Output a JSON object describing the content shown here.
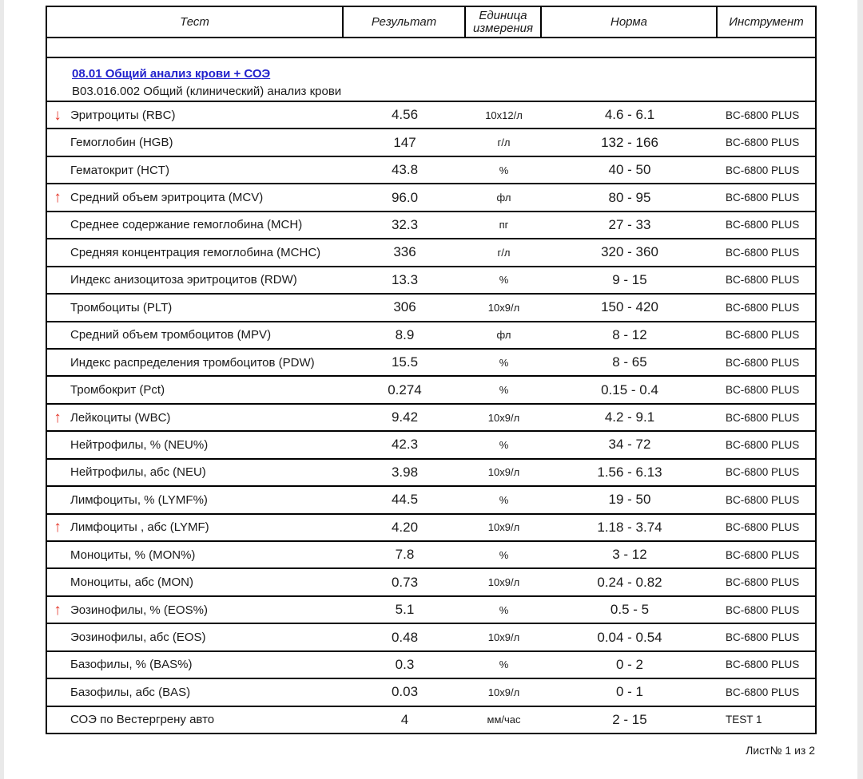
{
  "page": {
    "footer": "Лист№ 1 из 2"
  },
  "colors": {
    "flag_red": "#e53528",
    "link_blue": "#2222cc",
    "border_black": "#000000",
    "edge_gray": "#e9e9e9"
  },
  "icons": {
    "up": "↑",
    "down": "↓",
    "up_name": "arrow-up-icon",
    "down_name": "arrow-down-icon"
  },
  "table": {
    "headers": {
      "test": "Тест",
      "result": "Результат",
      "unit": "Единица измерения",
      "norm": "Норма",
      "instrument": "Инструмент"
    },
    "section": {
      "code_title": "08.01 Общий анализ крови + СОЭ",
      "subtitle": "В03.016.002 Общий (клинический) анализ крови"
    },
    "rows": [
      {
        "flag": "down",
        "test": "Эритроциты (RBC)",
        "result": "4.56",
        "unit": "10x12/л",
        "norm": "4.6 - 6.1",
        "instrument": "BC-6800 PLUS"
      },
      {
        "flag": "",
        "test": "Гемоглобин (HGB)",
        "result": "147",
        "unit": "г/л",
        "norm": "132 - 166",
        "instrument": "BC-6800 PLUS"
      },
      {
        "flag": "",
        "test": "Гематокрит (HCT)",
        "result": "43.8",
        "unit": "%",
        "norm": "40 - 50",
        "instrument": "BC-6800 PLUS"
      },
      {
        "flag": "up",
        "test": "Средний объем эритроцита (MCV)",
        "result": "96.0",
        "unit": "фл",
        "norm": "80 - 95",
        "instrument": "BC-6800 PLUS"
      },
      {
        "flag": "",
        "test": "Среднее содержание гемоглобина (MCH)",
        "result": "32.3",
        "unit": "пг",
        "norm": "27 - 33",
        "instrument": "BC-6800 PLUS"
      },
      {
        "flag": "",
        "test": "Средняя концентрация гемоглобина (MCHC)",
        "result": "336",
        "unit": "г/л",
        "norm": "320 - 360",
        "instrument": "BC-6800 PLUS"
      },
      {
        "flag": "",
        "test": "Индекс анизоцитоза эритроцитов (RDW)",
        "result": "13.3",
        "unit": "%",
        "norm": "9 - 15",
        "instrument": "BC-6800 PLUS"
      },
      {
        "flag": "",
        "test": "Тромбоциты (PLT)",
        "result": "306",
        "unit": "10x9/л",
        "norm": "150 - 420",
        "instrument": "BC-6800 PLUS"
      },
      {
        "flag": "",
        "test": "Средний объем тромбоцитов (MPV)",
        "result": "8.9",
        "unit": "фл",
        "norm": "8 - 12",
        "instrument": "BC-6800 PLUS"
      },
      {
        "flag": "",
        "test": "Индекс распределения тромбоцитов (PDW)",
        "result": "15.5",
        "unit": "%",
        "norm": "8 - 65",
        "instrument": "BC-6800 PLUS"
      },
      {
        "flag": "",
        "test": "Тромбокрит (Pct)",
        "result": "0.274",
        "unit": "%",
        "norm": "0.15 - 0.4",
        "instrument": "BC-6800 PLUS"
      },
      {
        "flag": "up",
        "test": "Лейкоциты (WBC)",
        "result": "9.42",
        "unit": "10x9/л",
        "norm": "4.2 - 9.1",
        "instrument": "BC-6800 PLUS"
      },
      {
        "flag": "",
        "test": "Нейтрофилы, % (NEU%)",
        "result": "42.3",
        "unit": "%",
        "norm": "34 - 72",
        "instrument": "BC-6800 PLUS"
      },
      {
        "flag": "",
        "test": "Нейтрофилы, абс (NEU)",
        "result": "3.98",
        "unit": "10x9/л",
        "norm": "1.56 - 6.13",
        "instrument": "BC-6800 PLUS"
      },
      {
        "flag": "",
        "test": "Лимфоциты, % (LYMF%)",
        "result": "44.5",
        "unit": "%",
        "norm": "19 - 50",
        "instrument": "BC-6800 PLUS"
      },
      {
        "flag": "up",
        "test": "Лимфоциты , абс (LYMF)",
        "result": "4.20",
        "unit": "10x9/л",
        "norm": "1.18 - 3.74",
        "instrument": "BC-6800 PLUS"
      },
      {
        "flag": "",
        "test": "Моноциты, % (MON%)",
        "result": "7.8",
        "unit": "%",
        "norm": "3 - 12",
        "instrument": "BC-6800 PLUS"
      },
      {
        "flag": "",
        "test": "Моноциты, абс (MON)",
        "result": "0.73",
        "unit": "10x9/л",
        "norm": "0.24 - 0.82",
        "instrument": "BC-6800 PLUS"
      },
      {
        "flag": "up",
        "test": "Эозинофилы, % (EOS%)",
        "result": "5.1",
        "unit": "%",
        "norm": "0.5 - 5",
        "instrument": "BC-6800 PLUS"
      },
      {
        "flag": "",
        "test": "Эозинофилы, абс (EOS)",
        "result": "0.48",
        "unit": "10x9/л",
        "norm": "0.04 - 0.54",
        "instrument": "BC-6800 PLUS"
      },
      {
        "flag": "",
        "test": "Базофилы, % (BAS%)",
        "result": "0.3",
        "unit": "%",
        "norm": "0 - 2",
        "instrument": "BC-6800 PLUS"
      },
      {
        "flag": "",
        "test": "Базофилы, абс (BAS)",
        "result": "0.03",
        "unit": "10x9/л",
        "norm": "0 - 1",
        "instrument": "BC-6800 PLUS"
      },
      {
        "flag": "",
        "test": "СОЭ по Вестергрену авто",
        "result": "4",
        "unit": "мм/час",
        "norm": "2 - 15",
        "instrument": "TEST 1"
      }
    ]
  }
}
